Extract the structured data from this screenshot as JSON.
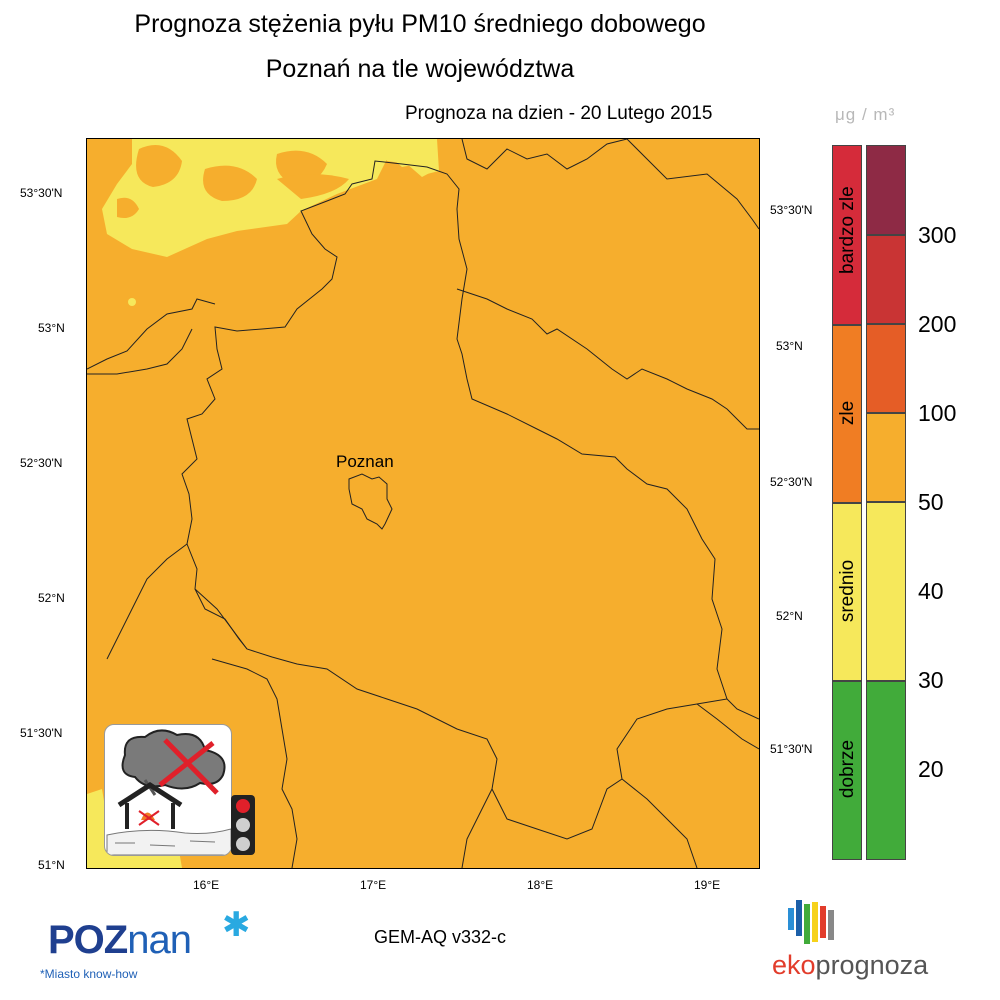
{
  "header": {
    "title_line1": "Prognoza stężenia pyłu PM10 średniego dobowego",
    "title_line2": "Poznań na tle województwa",
    "forecast_date": "Prognoza na dzien -  20 Lutego 2015",
    "unit": "μg / m³"
  },
  "map": {
    "lat_labels_left": [
      "53°30'N",
      "53°N",
      "52°30'N",
      "52°N",
      "51°30'N",
      "51°N"
    ],
    "lat_labels_right": [
      "53°30'N",
      "53°N",
      "52°30'N",
      "52°N",
      "51°30'N"
    ],
    "lon_labels": [
      "16°E",
      "17°E",
      "18°E",
      "19°E"
    ],
    "city_label": "Poznan",
    "colors": {
      "dobrze": "#41AB3A",
      "srednio": "#F6E85B",
      "zle": "#F6AE2D",
      "bardzo_zle": "#E05A22"
    }
  },
  "legend": {
    "categories": [
      {
        "label": "bardzo zle",
        "color": "#D52B3A"
      },
      {
        "label": "zle",
        "color": "#F07D23"
      },
      {
        "label": "srednio",
        "color": "#F6E85B"
      },
      {
        "label": "dobrze",
        "color": "#41AB3A"
      }
    ],
    "levels": [
      {
        "value": "300",
        "color": "#8E2A45"
      },
      {
        "value": "200",
        "color": "#C93434"
      },
      {
        "value": "100",
        "color": "#E55D26"
      },
      {
        "value": "50",
        "color": "#F6AE2D"
      },
      {
        "value": "40",
        "color": "#F6E85B"
      },
      {
        "value": "30",
        "color": "#F6E85B"
      },
      {
        "value": "20",
        "color": "#41AB3A"
      }
    ]
  },
  "footer": {
    "model": "GEM-AQ v332-c",
    "poznan_logo_a": "POZ",
    "poznan_logo_b": "nan",
    "poznan_tagline": "*Miasto know-how",
    "eko_a": "eko",
    "eko_b": "prognoza"
  }
}
